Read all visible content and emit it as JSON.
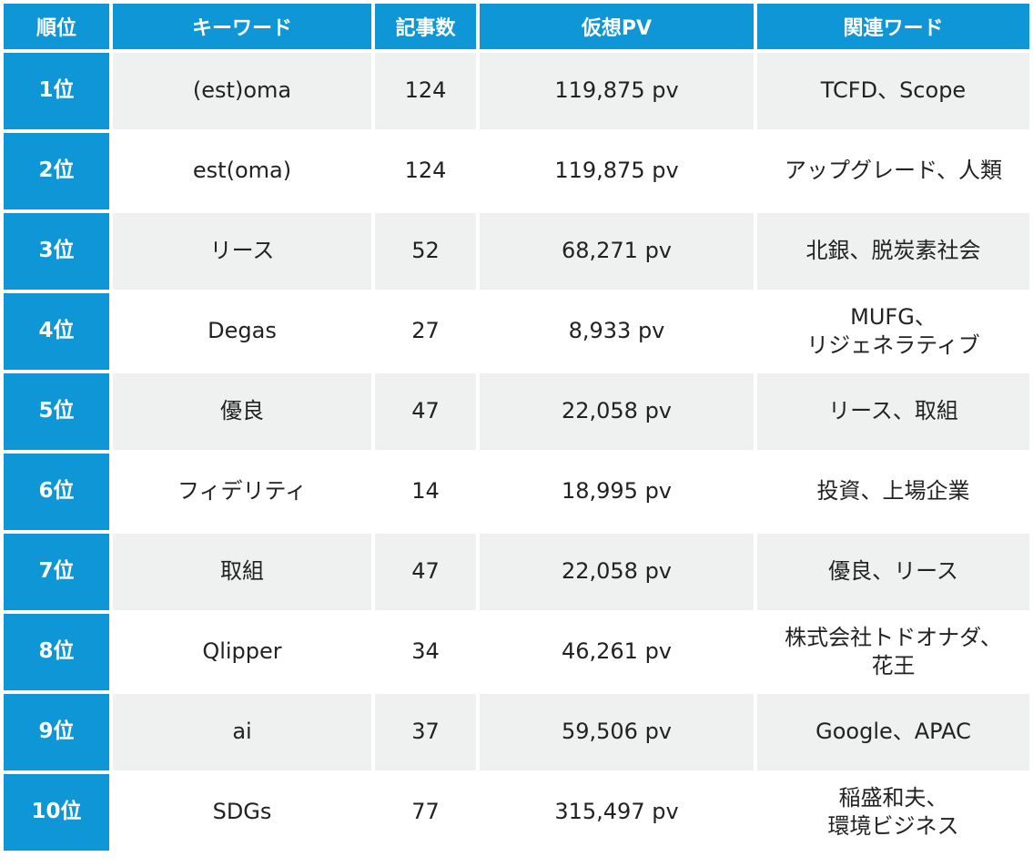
{
  "table": {
    "headers": [
      "順位",
      "キーワード",
      "記事数",
      "仮想PV",
      "関連ワード"
    ],
    "rows": [
      {
        "rank": "1位",
        "keyword": "(est)oma",
        "articles": "124",
        "pv": "119,875 pv",
        "related": [
          "TCFD、Scope"
        ]
      },
      {
        "rank": "2位",
        "keyword": "est(oma)",
        "articles": "124",
        "pv": "119,875 pv",
        "related": [
          "アップグレード、人類"
        ]
      },
      {
        "rank": "3位",
        "keyword": "リース",
        "articles": "52",
        "pv": "68,271 pv",
        "related": [
          "北銀、脱炭素社会"
        ]
      },
      {
        "rank": "4位",
        "keyword": "Degas",
        "articles": "27",
        "pv": "8,933 pv",
        "related": [
          "MUFG、",
          "リジェネラティブ"
        ]
      },
      {
        "rank": "5位",
        "keyword": "優良",
        "articles": "47",
        "pv": "22,058 pv",
        "related": [
          "リース、取組"
        ]
      },
      {
        "rank": "6位",
        "keyword": "フィデリティ",
        "articles": "14",
        "pv": "18,995 pv",
        "related": [
          "投資、上場企業"
        ]
      },
      {
        "rank": "7位",
        "keyword": "取組",
        "articles": "47",
        "pv": "22,058 pv",
        "related": [
          "優良、リース"
        ]
      },
      {
        "rank": "8位",
        "keyword": "Qlipper",
        "articles": "34",
        "pv": "46,261 pv",
        "related": [
          "株式会社トドオナダ、",
          "花王"
        ]
      },
      {
        "rank": "9位",
        "keyword": "ai",
        "articles": "37",
        "pv": "59,506 pv",
        "related": [
          "Google、APAC"
        ]
      },
      {
        "rank": "10位",
        "keyword": "SDGs",
        "articles": "77",
        "pv": "315,497 pv",
        "related": [
          "稲盛和夫、",
          "環境ビジネス"
        ]
      }
    ]
  },
  "colors": {
    "accent": "#0f96d6",
    "row_stripe": "#eff0f0",
    "header_text": "#ffffff",
    "body_text": "#222222"
  }
}
